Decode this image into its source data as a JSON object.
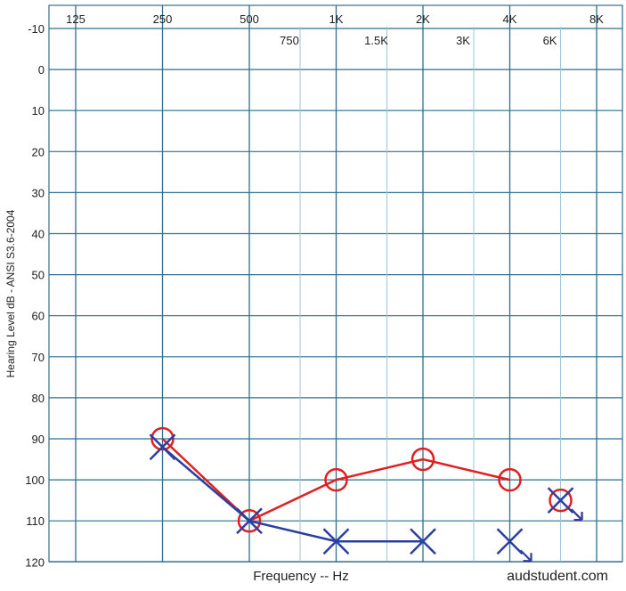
{
  "chart_data": {
    "type": "scatter",
    "title": "",
    "xlabel": "Frequency -- Hz",
    "ylabel": "Hearing Level dB - ANSI S3.6-2004",
    "credit": "audstudent.com",
    "x_scale": "log2",
    "y_inverted": true,
    "ylim": [
      -10,
      120
    ],
    "grid": true,
    "octave_ticks": [
      {
        "label": "125",
        "hz": 125
      },
      {
        "label": "250",
        "hz": 250
      },
      {
        "label": "500",
        "hz": 500
      },
      {
        "label": "1K",
        "hz": 1000
      },
      {
        "label": "2K",
        "hz": 2000
      },
      {
        "label": "4K",
        "hz": 4000
      },
      {
        "label": "8K",
        "hz": 8000
      }
    ],
    "interoctave_ticks": [
      {
        "label": "750",
        "hz": 750
      },
      {
        "label": "1.5K",
        "hz": 1500
      },
      {
        "label": "3K",
        "hz": 3000
      },
      {
        "label": "6K",
        "hz": 6000
      }
    ],
    "y_ticks": [
      -10,
      0,
      10,
      20,
      30,
      40,
      50,
      60,
      70,
      80,
      90,
      100,
      110,
      120
    ],
    "series": [
      {
        "symbol": "O",
        "color": "#e02020",
        "points": [
          {
            "hz": 250,
            "db": 90
          },
          {
            "hz": 500,
            "db": 110
          },
          {
            "hz": 1000,
            "db": 100
          },
          {
            "hz": 2000,
            "db": 95
          },
          {
            "hz": 4000,
            "db": 100
          },
          {
            "hz": 6000,
            "db": 105,
            "no_response": true
          }
        ],
        "connect_to_index": 4
      },
      {
        "symbol": "X",
        "color": "#2a3fa0",
        "points": [
          {
            "hz": 250,
            "db": 92
          },
          {
            "hz": 500,
            "db": 110
          },
          {
            "hz": 1000,
            "db": 115
          },
          {
            "hz": 2000,
            "db": 115
          },
          {
            "hz": 4000,
            "db": 115,
            "no_response": true
          },
          {
            "hz": 6000,
            "db": 105,
            "no_response": true
          }
        ],
        "connect_to_index": 3
      }
    ]
  }
}
